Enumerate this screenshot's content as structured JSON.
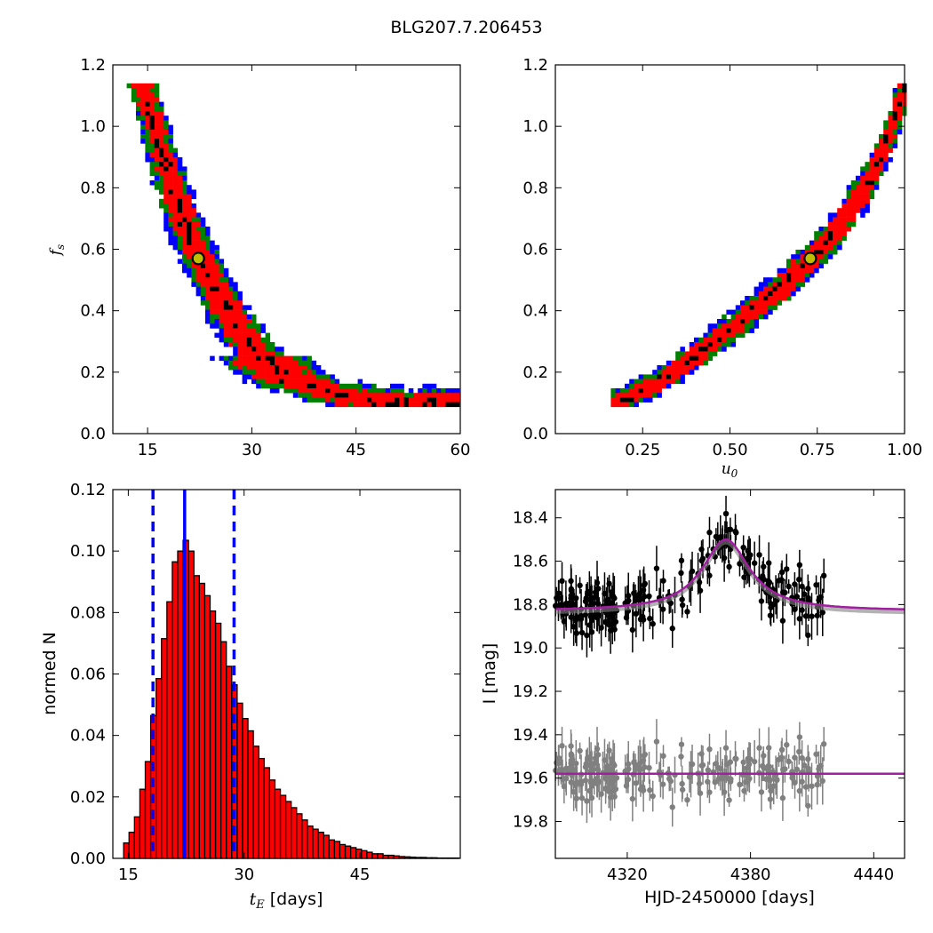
{
  "figure_title": "BLG207.7.206453",
  "colors": {
    "blue": "#0000ff",
    "green": "#008000",
    "red": "#ff0000",
    "black": "#000000",
    "marker_face": "#bfbf00",
    "model": "#a020a0",
    "gray": "#808080"
  },
  "chart_data": [
    {
      "id": "fs_vs_tE",
      "type": "heatmap",
      "ylabel": "f_s",
      "xlabel": "",
      "xlim": [
        10,
        60
      ],
      "ylim": [
        0.0,
        1.2
      ],
      "xticks": [
        "15",
        "30",
        "45",
        "60"
      ],
      "yticks": [
        "0.0",
        "0.2",
        "0.4",
        "0.6",
        "0.8",
        "1.0",
        "1.2"
      ],
      "regions": "confidence-contour density: blue (outer), green, red, black (densest)",
      "best_fit": {
        "x": 22.3,
        "y": 0.57
      },
      "ridge": [
        [
          14.5,
          1.12
        ],
        [
          16,
          1.0
        ],
        [
          18,
          0.85
        ],
        [
          20,
          0.7
        ],
        [
          22,
          0.6
        ],
        [
          24,
          0.5
        ],
        [
          27,
          0.38
        ],
        [
          30,
          0.28
        ],
        [
          35,
          0.18
        ],
        [
          42,
          0.13
        ],
        [
          50,
          0.1
        ],
        [
          57,
          0.1
        ]
      ]
    },
    {
      "id": "fs_vs_u0",
      "type": "heatmap",
      "xlabel": "u_0",
      "ylabel": "",
      "xlim": [
        0.0,
        1.0
      ],
      "ylim": [
        0.0,
        1.2
      ],
      "xticks": [
        "0.25",
        "0.50",
        "0.75",
        "1.00"
      ],
      "yticks": [
        "0.0",
        "0.2",
        "0.4",
        "0.6",
        "0.8",
        "1.0",
        "1.2"
      ],
      "regions": "confidence-contour density: blue (outer), green, red, black (densest)",
      "best_fit": {
        "x": 0.73,
        "y": 0.57
      },
      "ridge": [
        [
          0.18,
          0.1
        ],
        [
          0.3,
          0.17
        ],
        [
          0.4,
          0.25
        ],
        [
          0.5,
          0.34
        ],
        [
          0.6,
          0.43
        ],
        [
          0.7,
          0.53
        ],
        [
          0.8,
          0.65
        ],
        [
          0.9,
          0.82
        ],
        [
          0.95,
          0.95
        ],
        [
          1.0,
          1.12
        ]
      ]
    },
    {
      "id": "tE_histogram",
      "type": "bar",
      "xlabel": "t_E [days]",
      "ylabel": "normed N",
      "xlim": [
        13,
        58
      ],
      "ylim": [
        0.0,
        0.12
      ],
      "xticks": [
        "15",
        "30",
        "45"
      ],
      "yticks": [
        "0.00",
        "0.02",
        "0.04",
        "0.06",
        "0.08",
        "0.10",
        "0.12"
      ],
      "bin_width": 0.7,
      "bin_start": 13.0,
      "values": [
        0.0,
        0.0,
        0.005,
        0.0085,
        0.0135,
        0.0225,
        0.0315,
        0.0465,
        0.0585,
        0.0715,
        0.0835,
        0.0965,
        0.1,
        0.1035,
        0.1,
        0.092,
        0.0895,
        0.0855,
        0.0805,
        0.0765,
        0.0705,
        0.0625,
        0.0565,
        0.0505,
        0.0455,
        0.0415,
        0.0365,
        0.0325,
        0.0295,
        0.0255,
        0.0225,
        0.0205,
        0.0185,
        0.0165,
        0.0145,
        0.0125,
        0.0105,
        0.0095,
        0.0085,
        0.0075,
        0.006,
        0.0055,
        0.0045,
        0.004,
        0.0035,
        0.003,
        0.0025,
        0.002,
        0.0015,
        0.0015,
        0.001,
        0.001,
        0.0008,
        0.0006,
        0.0005,
        0.0004,
        0.0003,
        0.0003,
        0.0002,
        0.0002,
        0.0001,
        0.0001,
        0.0001,
        0.0001
      ],
      "median_line": 22.3,
      "interval_lines": [
        18.2,
        28.7
      ]
    },
    {
      "id": "lightcurve",
      "type": "scatter",
      "xlabel": "HJD-2450000 [days]",
      "ylabel": "I [mag]",
      "xlim": [
        4285,
        4455
      ],
      "ylim": [
        19.97,
        18.27
      ],
      "y_inverted": true,
      "xticks": [
        "4320",
        "4380",
        "4440"
      ],
      "yticks": [
        "18.4",
        "18.6",
        "18.8",
        "19.0",
        "19.2",
        "19.4",
        "19.6",
        "19.8"
      ],
      "model": {
        "t0": 4368,
        "baseline": 18.83,
        "peak": 18.5,
        "width": 14
      },
      "residual_baseline": 19.58,
      "data_range": [
        4285,
        4415
      ]
    }
  ]
}
